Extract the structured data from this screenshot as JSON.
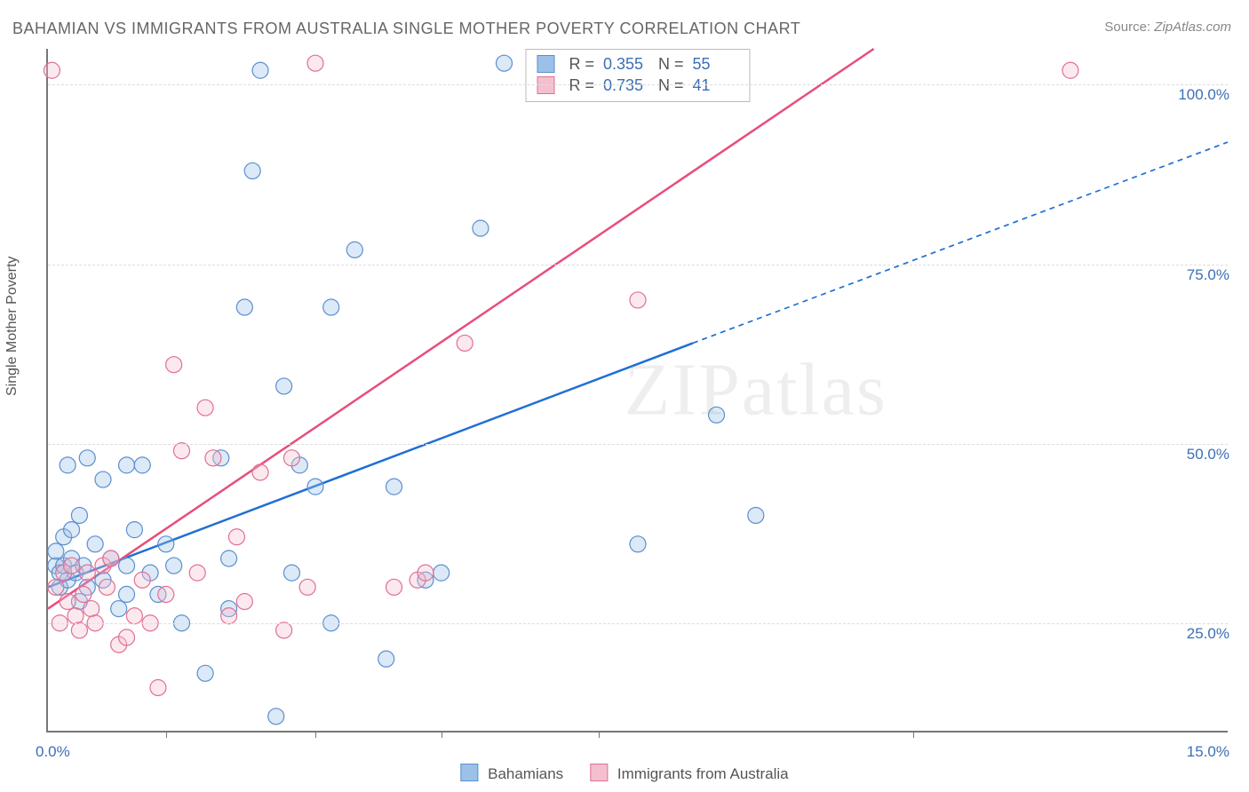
{
  "title": "BAHAMIAN VS IMMIGRANTS FROM AUSTRALIA SINGLE MOTHER POVERTY CORRELATION CHART",
  "source_label": "Source:",
  "source_value": "ZipAtlas.com",
  "watermark": "ZIPatlas",
  "y_axis_label": "Single Mother Poverty",
  "chart": {
    "type": "scatter",
    "background_color": "#ffffff",
    "grid_color": "#dddddd",
    "axis_color": "#777777",
    "tick_label_color": "#3b6fb6",
    "xlim": [
      0,
      15
    ],
    "ylim": [
      10,
      105
    ],
    "x_ticks_major": [
      0,
      15
    ],
    "x_tick_labels": [
      "0.0%",
      "15.0%"
    ],
    "x_minor_ticks": [
      1.5,
      3.4,
      5.0,
      7.0,
      11.0
    ],
    "y_ticks": [
      25,
      50,
      75,
      100
    ],
    "y_tick_labels": [
      "25.0%",
      "50.0%",
      "75.0%",
      "100.0%"
    ],
    "marker_radius": 9,
    "marker_fill_opacity": 0.35,
    "marker_stroke_width": 1.2,
    "trend_line_width": 2.5,
    "dash_pattern": "6,5"
  },
  "series": [
    {
      "id": "bahamians",
      "label": "Bahamians",
      "color_fill": "#9cc1e8",
      "color_stroke": "#5a8fcf",
      "line_color": "#1f6fd4",
      "R": "0.355",
      "N": "55",
      "trend": {
        "x1": 0,
        "y1": 30,
        "x2": 8.2,
        "y2": 64,
        "ext_x": 15,
        "ext_y": 92
      },
      "points": [
        [
          0.1,
          33
        ],
        [
          0.1,
          35
        ],
        [
          0.15,
          30
        ],
        [
          0.15,
          32
        ],
        [
          0.2,
          37
        ],
        [
          0.2,
          33
        ],
        [
          0.25,
          47
        ],
        [
          0.25,
          31
        ],
        [
          0.3,
          38
        ],
        [
          0.3,
          34
        ],
        [
          0.35,
          32
        ],
        [
          0.4,
          40
        ],
        [
          0.4,
          28
        ],
        [
          0.45,
          33
        ],
        [
          0.5,
          48
        ],
        [
          0.5,
          30
        ],
        [
          0.6,
          36
        ],
        [
          0.7,
          31
        ],
        [
          0.7,
          45
        ],
        [
          0.8,
          34
        ],
        [
          0.9,
          27
        ],
        [
          1.0,
          47
        ],
        [
          1.0,
          29
        ],
        [
          1.0,
          33
        ],
        [
          1.1,
          38
        ],
        [
          1.2,
          47
        ],
        [
          1.3,
          32
        ],
        [
          1.4,
          29
        ],
        [
          1.5,
          36
        ],
        [
          1.6,
          33
        ],
        [
          1.7,
          25
        ],
        [
          2.0,
          18
        ],
        [
          2.2,
          48
        ],
        [
          2.3,
          34
        ],
        [
          2.3,
          27
        ],
        [
          2.5,
          69
        ],
        [
          2.6,
          88
        ],
        [
          2.7,
          102
        ],
        [
          2.9,
          12
        ],
        [
          3.0,
          58
        ],
        [
          3.1,
          32
        ],
        [
          3.2,
          47
        ],
        [
          3.4,
          44
        ],
        [
          3.6,
          25
        ],
        [
          3.6,
          69
        ],
        [
          3.9,
          77
        ],
        [
          4.3,
          20
        ],
        [
          4.4,
          44
        ],
        [
          4.8,
          31
        ],
        [
          5.0,
          32
        ],
        [
          5.5,
          80
        ],
        [
          5.8,
          103
        ],
        [
          7.5,
          36
        ],
        [
          8.5,
          54
        ],
        [
          9.0,
          40
        ]
      ]
    },
    {
      "id": "aus",
      "label": "Immigrants from Australia",
      "color_fill": "#f4c0cf",
      "color_stroke": "#e16f95",
      "line_color": "#e94d7a",
      "R": "0.735",
      "N": "41",
      "trend": {
        "x1": 0,
        "y1": 27,
        "x2": 10.5,
        "y2": 105,
        "ext_x": 10.5,
        "ext_y": 105
      },
      "points": [
        [
          0.1,
          30
        ],
        [
          0.15,
          25
        ],
        [
          0.2,
          32
        ],
        [
          0.25,
          28
        ],
        [
          0.3,
          33
        ],
        [
          0.35,
          26
        ],
        [
          0.4,
          24
        ],
        [
          0.45,
          29
        ],
        [
          0.5,
          32
        ],
        [
          0.55,
          27
        ],
        [
          0.6,
          25
        ],
        [
          0.7,
          33
        ],
        [
          0.75,
          30
        ],
        [
          0.8,
          34
        ],
        [
          0.9,
          22
        ],
        [
          1.0,
          23
        ],
        [
          1.1,
          26
        ],
        [
          1.2,
          31
        ],
        [
          1.3,
          25
        ],
        [
          1.4,
          16
        ],
        [
          1.5,
          29
        ],
        [
          1.6,
          61
        ],
        [
          1.7,
          49
        ],
        [
          1.9,
          32
        ],
        [
          2.0,
          55
        ],
        [
          2.1,
          48
        ],
        [
          2.3,
          26
        ],
        [
          2.4,
          37
        ],
        [
          2.5,
          28
        ],
        [
          2.7,
          46
        ],
        [
          3.0,
          24
        ],
        [
          3.1,
          48
        ],
        [
          3.3,
          30
        ],
        [
          3.4,
          103
        ],
        [
          4.4,
          30
        ],
        [
          4.7,
          31
        ],
        [
          4.8,
          32
        ],
        [
          5.3,
          64
        ],
        [
          7.5,
          70
        ],
        [
          13.0,
          102
        ],
        [
          0.05,
          102
        ]
      ]
    }
  ],
  "stats_labels": {
    "R": "R =",
    "N": "N ="
  },
  "legend_bottom": {
    "series1": "Bahamians",
    "series2": "Immigrants from Australia"
  }
}
